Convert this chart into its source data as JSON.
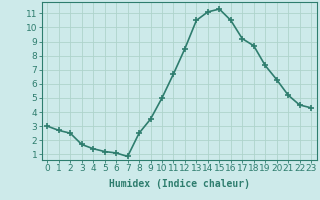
{
  "x": [
    0,
    1,
    2,
    3,
    4,
    5,
    6,
    7,
    8,
    9,
    10,
    11,
    12,
    13,
    14,
    15,
    16,
    17,
    18,
    19,
    20,
    21,
    22,
    23
  ],
  "y": [
    3.0,
    2.7,
    2.5,
    1.7,
    1.4,
    1.2,
    1.1,
    0.85,
    2.5,
    3.5,
    5.0,
    6.7,
    8.5,
    10.5,
    11.1,
    11.3,
    10.5,
    9.2,
    8.7,
    7.3,
    6.3,
    5.2,
    4.5,
    4.3
  ],
  "line_color": "#2e7d6e",
  "marker": "+",
  "marker_size": 4,
  "linewidth": 1.2,
  "xlabel": "Humidex (Indice chaleur)",
  "xlim": [
    -0.5,
    23.5
  ],
  "ylim": [
    0.6,
    11.8
  ],
  "xticks": [
    0,
    1,
    2,
    3,
    4,
    5,
    6,
    7,
    8,
    9,
    10,
    11,
    12,
    13,
    14,
    15,
    16,
    17,
    18,
    19,
    20,
    21,
    22,
    23
  ],
  "yticks": [
    1,
    2,
    3,
    4,
    5,
    6,
    7,
    8,
    9,
    10,
    11
  ],
  "bg_color": "#cdeaea",
  "grid_color": "#aed4cc",
  "axis_color": "#2e7d6e",
  "xlabel_fontsize": 7,
  "tick_fontsize": 6.5
}
